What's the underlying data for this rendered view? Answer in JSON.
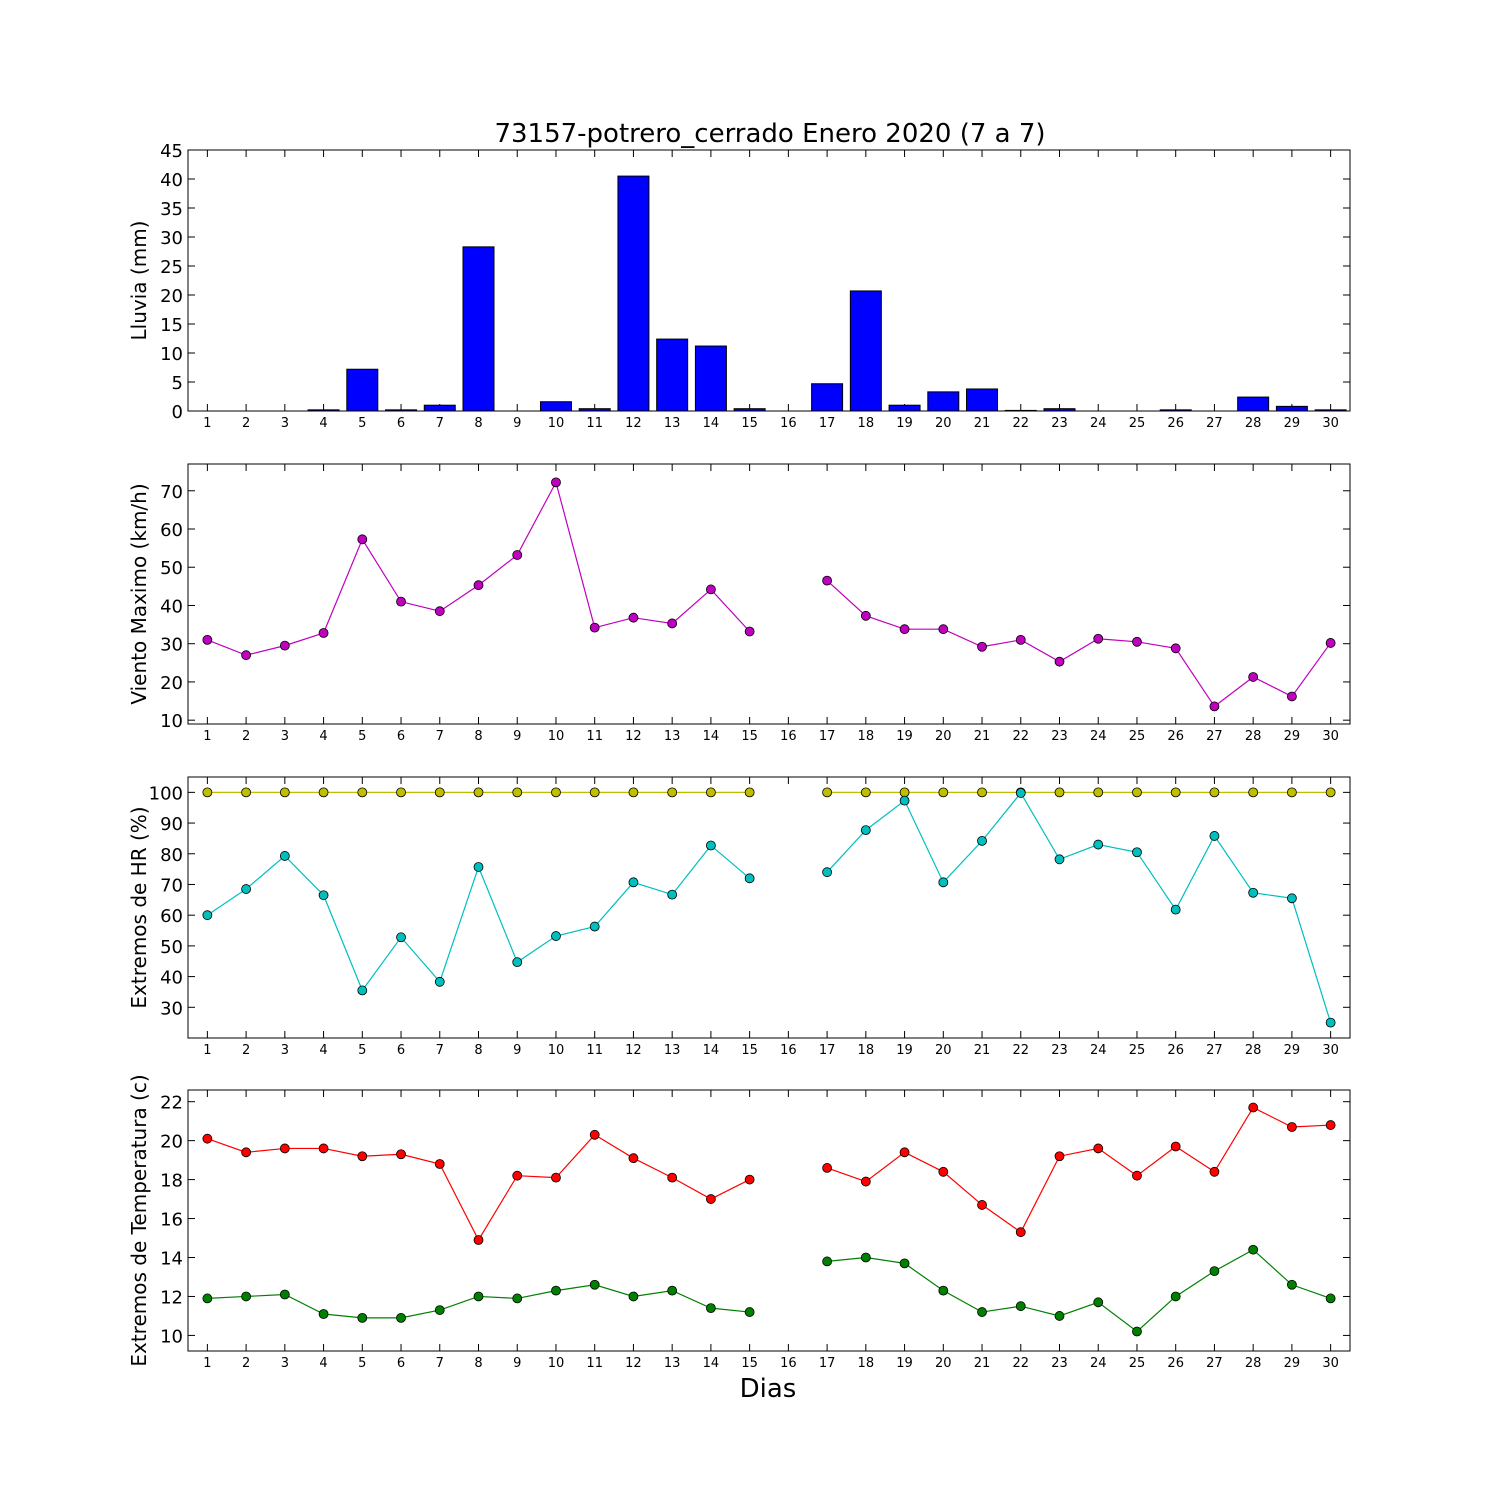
{
  "figure": {
    "title": "73157-potrero_cerrado Enero 2020  (7 a 7)",
    "xlabel": "Dias"
  },
  "chart_data": [
    {
      "type": "bar",
      "ylabel": "Lluvia (mm)",
      "ylim": [
        0,
        45
      ],
      "yticks": [
        0,
        5,
        10,
        15,
        20,
        25,
        30,
        35,
        40,
        45
      ],
      "xticks": [
        1,
        2,
        3,
        4,
        5,
        6,
        7,
        8,
        9,
        10,
        11,
        12,
        13,
        14,
        15,
        16,
        17,
        18,
        19,
        20,
        21,
        22,
        23,
        24,
        25,
        26,
        27,
        28,
        29,
        30
      ],
      "categories": [
        1,
        2,
        3,
        4,
        5,
        6,
        7,
        8,
        9,
        10,
        11,
        12,
        13,
        14,
        15,
        16,
        17,
        18,
        19,
        20,
        21,
        22,
        23,
        24,
        25,
        26,
        27,
        28,
        29,
        30
      ],
      "series": [
        {
          "color": "#0000ff",
          "values": [
            0,
            0,
            0,
            0.2,
            7.2,
            0.2,
            1.0,
            28.3,
            0,
            1.6,
            0.4,
            40.5,
            12.4,
            11.2,
            0.4,
            0,
            4.7,
            20.7,
            1.0,
            3.3,
            3.8,
            0.1,
            0.4,
            0,
            0,
            0.2,
            0,
            2.4,
            0.8,
            0.2
          ]
        }
      ]
    },
    {
      "type": "line",
      "ylabel": "Viento Maximo (km/h)",
      "ylim": [
        9,
        77
      ],
      "yticks": [
        10,
        20,
        30,
        40,
        50,
        60,
        70
      ],
      "xticks": [
        1,
        2,
        3,
        4,
        5,
        6,
        7,
        8,
        9,
        10,
        11,
        12,
        13,
        14,
        15,
        16,
        17,
        18,
        19,
        20,
        21,
        22,
        23,
        24,
        25,
        26,
        27,
        28,
        29,
        30
      ],
      "x": [
        1,
        2,
        3,
        4,
        5,
        6,
        7,
        8,
        9,
        10,
        11,
        12,
        13,
        14,
        15,
        16,
        17,
        18,
        19,
        20,
        21,
        22,
        23,
        24,
        25,
        26,
        27,
        28,
        29,
        30
      ],
      "series": [
        {
          "color": "#bf00bf",
          "values": [
            31.0,
            27.0,
            29.5,
            32.8,
            57.3,
            41.0,
            38.5,
            45.3,
            53.2,
            72.2,
            34.2,
            36.8,
            35.3,
            44.2,
            33.2,
            null,
            46.5,
            37.3,
            33.8,
            33.8,
            29.2,
            31.0,
            25.3,
            31.3,
            30.5,
            28.8,
            13.6,
            21.3,
            16.2,
            30.2
          ]
        }
      ]
    },
    {
      "type": "line",
      "ylabel": "Extremos de HR (%)",
      "ylim": [
        20,
        105
      ],
      "yticks": [
        30,
        40,
        50,
        60,
        70,
        80,
        90,
        100
      ],
      "xticks": [
        1,
        2,
        3,
        4,
        5,
        6,
        7,
        8,
        9,
        10,
        11,
        12,
        13,
        14,
        15,
        16,
        17,
        18,
        19,
        20,
        21,
        22,
        23,
        24,
        25,
        26,
        27,
        28,
        29,
        30
      ],
      "x": [
        1,
        2,
        3,
        4,
        5,
        6,
        7,
        8,
        9,
        10,
        11,
        12,
        13,
        14,
        15,
        16,
        17,
        18,
        19,
        20,
        21,
        22,
        23,
        24,
        25,
        26,
        27,
        28,
        29,
        30
      ],
      "series": [
        {
          "color": "#bfbf00",
          "values": [
            100,
            100,
            100,
            100,
            100,
            100,
            100,
            100,
            100,
            100,
            100,
            100,
            100,
            100,
            100,
            null,
            100,
            100,
            100,
            100,
            100,
            100,
            100,
            100,
            100,
            100,
            100,
            100,
            100,
            100
          ]
        },
        {
          "color": "#00bfbf",
          "values": [
            60,
            68.5,
            79.3,
            66.5,
            35.5,
            52.8,
            38.3,
            75.7,
            44.7,
            53.2,
            56.3,
            70.7,
            66.7,
            82.7,
            72.0,
            null,
            74.0,
            87.7,
            97.3,
            70.7,
            84.2,
            99.8,
            78.2,
            83.0,
            80.5,
            61.8,
            85.8,
            67.3,
            65.5,
            25.0
          ]
        }
      ]
    },
    {
      "type": "line",
      "ylabel": "Extremos de Temperatura (c)",
      "ylim": [
        9.2,
        22.6
      ],
      "yticks": [
        10,
        12,
        14,
        16,
        18,
        20,
        22
      ],
      "xticks": [
        1,
        2,
        3,
        4,
        5,
        6,
        7,
        8,
        9,
        10,
        11,
        12,
        13,
        14,
        15,
        16,
        17,
        18,
        19,
        20,
        21,
        22,
        23,
        24,
        25,
        26,
        27,
        28,
        29,
        30
      ],
      "x": [
        1,
        2,
        3,
        4,
        5,
        6,
        7,
        8,
        9,
        10,
        11,
        12,
        13,
        14,
        15,
        16,
        17,
        18,
        19,
        20,
        21,
        22,
        23,
        24,
        25,
        26,
        27,
        28,
        29,
        30
      ],
      "series": [
        {
          "color": "#ff0000",
          "values": [
            20.1,
            19.4,
            19.6,
            19.6,
            19.2,
            19.3,
            18.8,
            14.9,
            18.2,
            18.1,
            20.3,
            19.1,
            18.1,
            17.0,
            18.0,
            null,
            18.6,
            17.9,
            19.4,
            18.4,
            16.7,
            15.3,
            19.2,
            19.6,
            18.2,
            19.7,
            18.4,
            21.7,
            20.7,
            20.8
          ]
        },
        {
          "color": "#008000",
          "values": [
            11.9,
            12.0,
            12.1,
            11.1,
            10.9,
            10.9,
            11.3,
            12.0,
            11.9,
            12.3,
            12.6,
            12.0,
            12.3,
            11.4,
            11.2,
            null,
            13.8,
            14.0,
            13.7,
            12.3,
            11.2,
            11.5,
            11.0,
            11.7,
            10.2,
            12.0,
            13.3,
            14.4,
            12.6,
            11.9
          ]
        }
      ]
    }
  ]
}
